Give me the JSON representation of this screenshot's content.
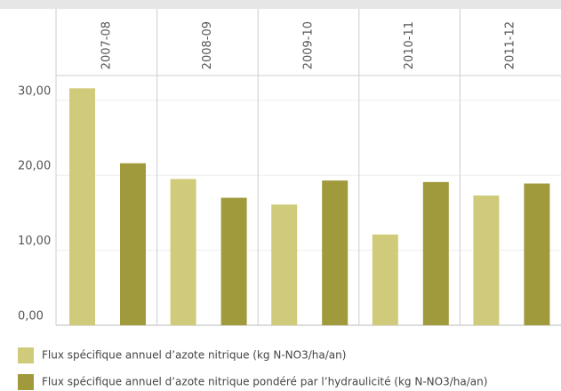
{
  "chart_data": {
    "type": "bar",
    "categories": [
      "2007-08",
      "2008-09",
      "2009-10",
      "2010-11",
      "2011-12"
    ],
    "series": [
      {
        "name": "Flux spécifique annuel d’azote nitrique (kg N-NO3/ha/an)",
        "color": "#cfcb7a",
        "values": [
          31.6,
          19.5,
          16.1,
          12.1,
          17.3
        ]
      },
      {
        "name": "Flux spécifique annuel d’azote nitrique pondéré par l’hydraulicité (kg N-NO3/ha/an)",
        "color": "#a09a3c",
        "values": [
          21.6,
          17.0,
          19.3,
          19.1,
          18.9
        ]
      }
    ],
    "ylim": [
      0,
      33.3
    ],
    "yticks": [
      {
        "value": 0,
        "label": "0,00"
      },
      {
        "value": 10,
        "label": "10,00"
      },
      {
        "value": 20,
        "label": "20,00"
      },
      {
        "value": 30,
        "label": "30,00"
      }
    ],
    "grid": true
  }
}
